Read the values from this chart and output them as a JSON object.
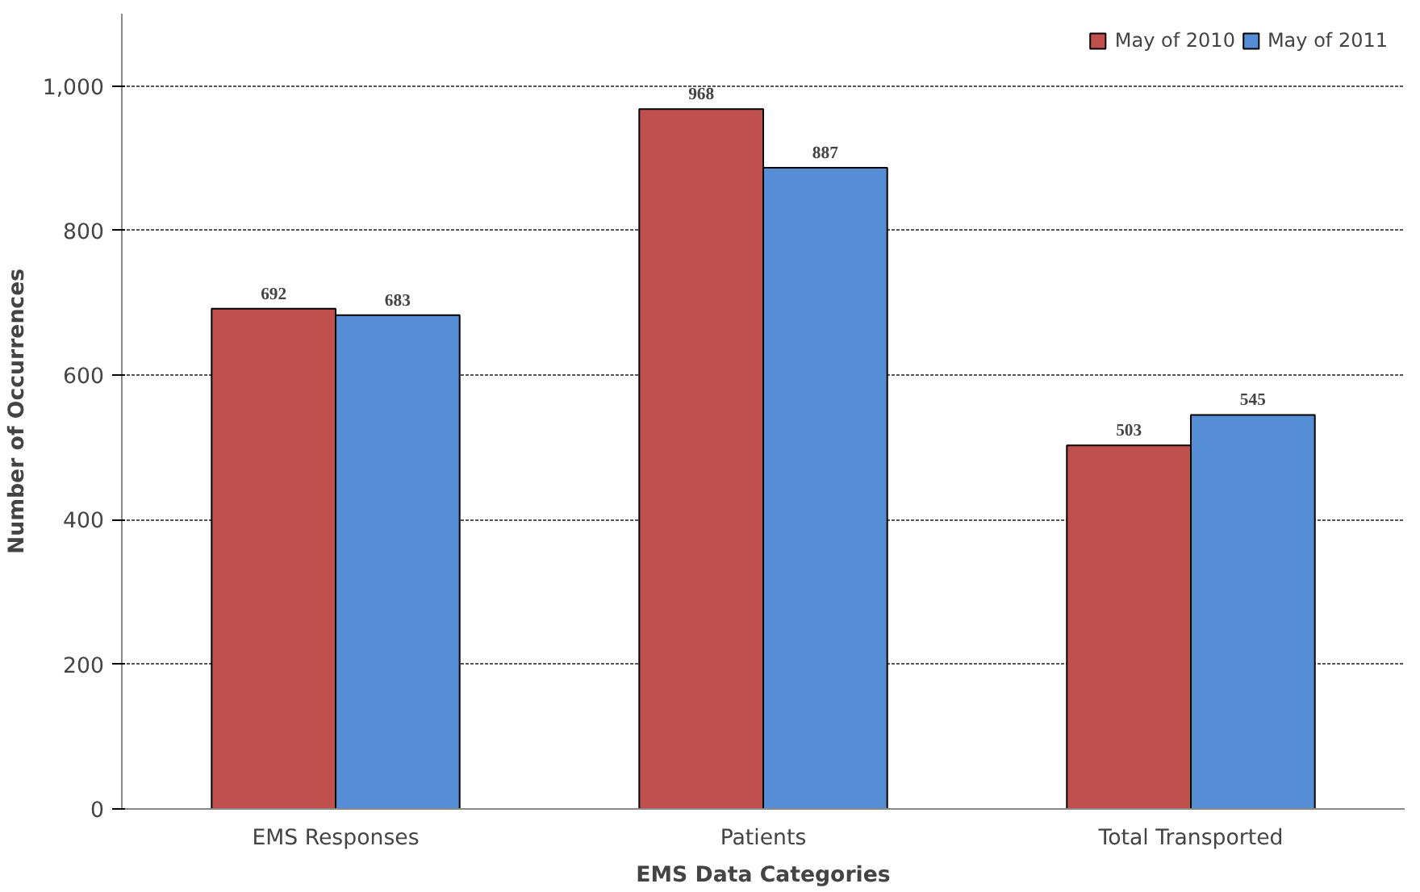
{
  "chart_data": {
    "type": "bar",
    "xlabel": "EMS Data Categories",
    "ylabel": "Number of Occurrences",
    "categories": [
      "EMS Responses",
      "Patients",
      "Total Transported"
    ],
    "series": [
      {
        "name": "May of 2010",
        "color": "#c0504d",
        "values": [
          692,
          968,
          503
        ]
      },
      {
        "name": "May of 2011",
        "color": "#558ed5",
        "values": [
          683,
          887,
          545
        ]
      }
    ],
    "ylim": [
      0,
      1100
    ],
    "yticks": [
      0,
      200,
      400,
      600,
      800,
      {
        "value": 1000,
        "label": "1,000"
      }
    ],
    "grid": "y",
    "legend": "top right",
    "data_labels": true
  }
}
